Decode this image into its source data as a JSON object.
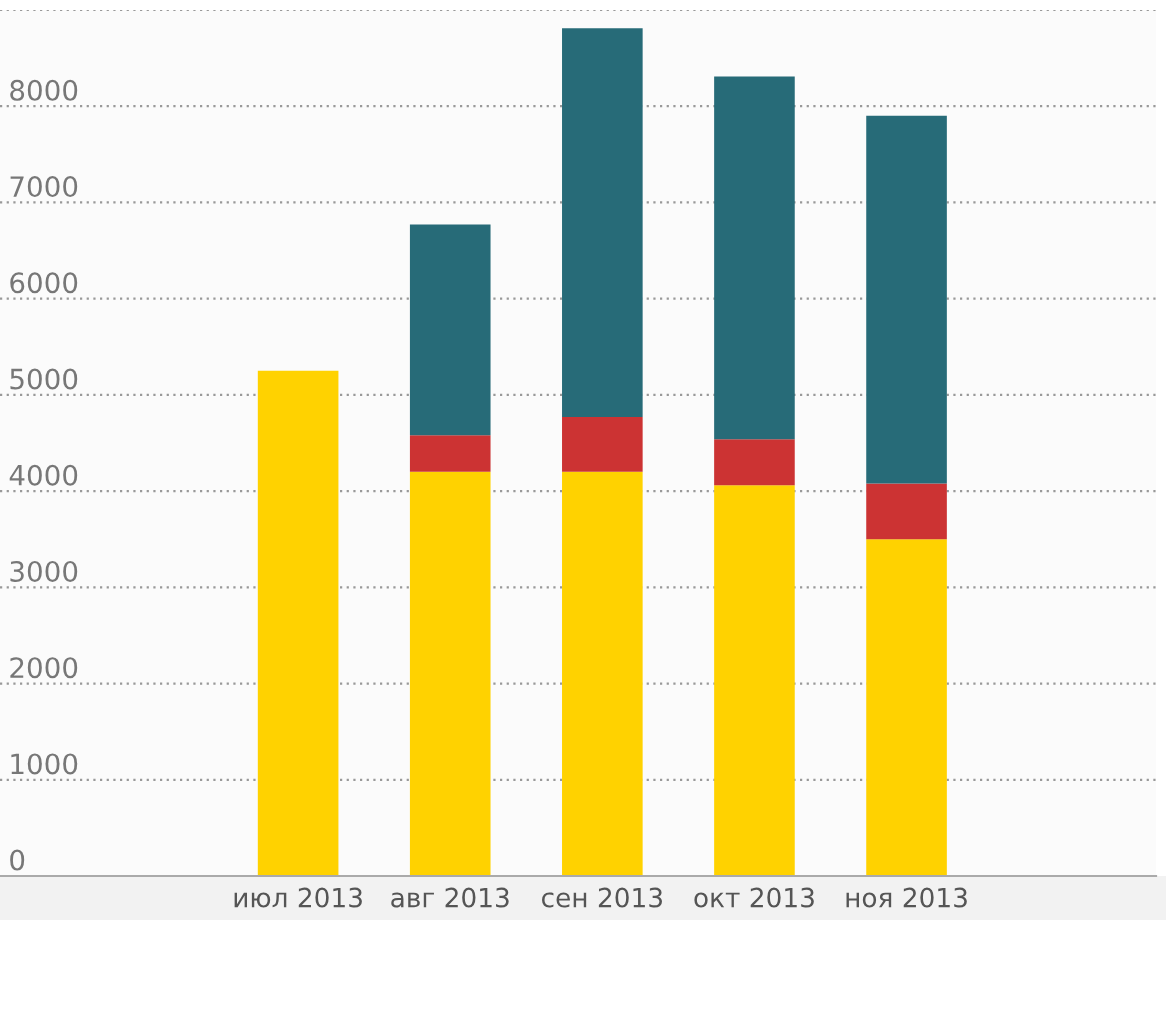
{
  "chart_data": {
    "type": "bar",
    "stacked": true,
    "categories": [
      "июл 2013",
      "авг 2013",
      "сен 2013",
      "окт 2013",
      "ноя 2013"
    ],
    "series": [
      {
        "color": "#ffd200",
        "values": [
          5250,
          4200,
          4200,
          4060,
          3500
        ]
      },
      {
        "color": "#cc3333",
        "values": [
          null,
          380,
          570,
          480,
          580
        ]
      },
      {
        "color": "#276b78",
        "values": [
          null,
          2190,
          4040,
          3770,
          3820
        ]
      }
    ],
    "ylim": [
      0,
      9000
    ],
    "yticks": [
      0,
      1000,
      2000,
      3000,
      4000,
      5000,
      6000,
      7000,
      8000,
      {
        "value": 9000,
        "label": null
      }
    ],
    "grid": "y",
    "legend": false
  }
}
